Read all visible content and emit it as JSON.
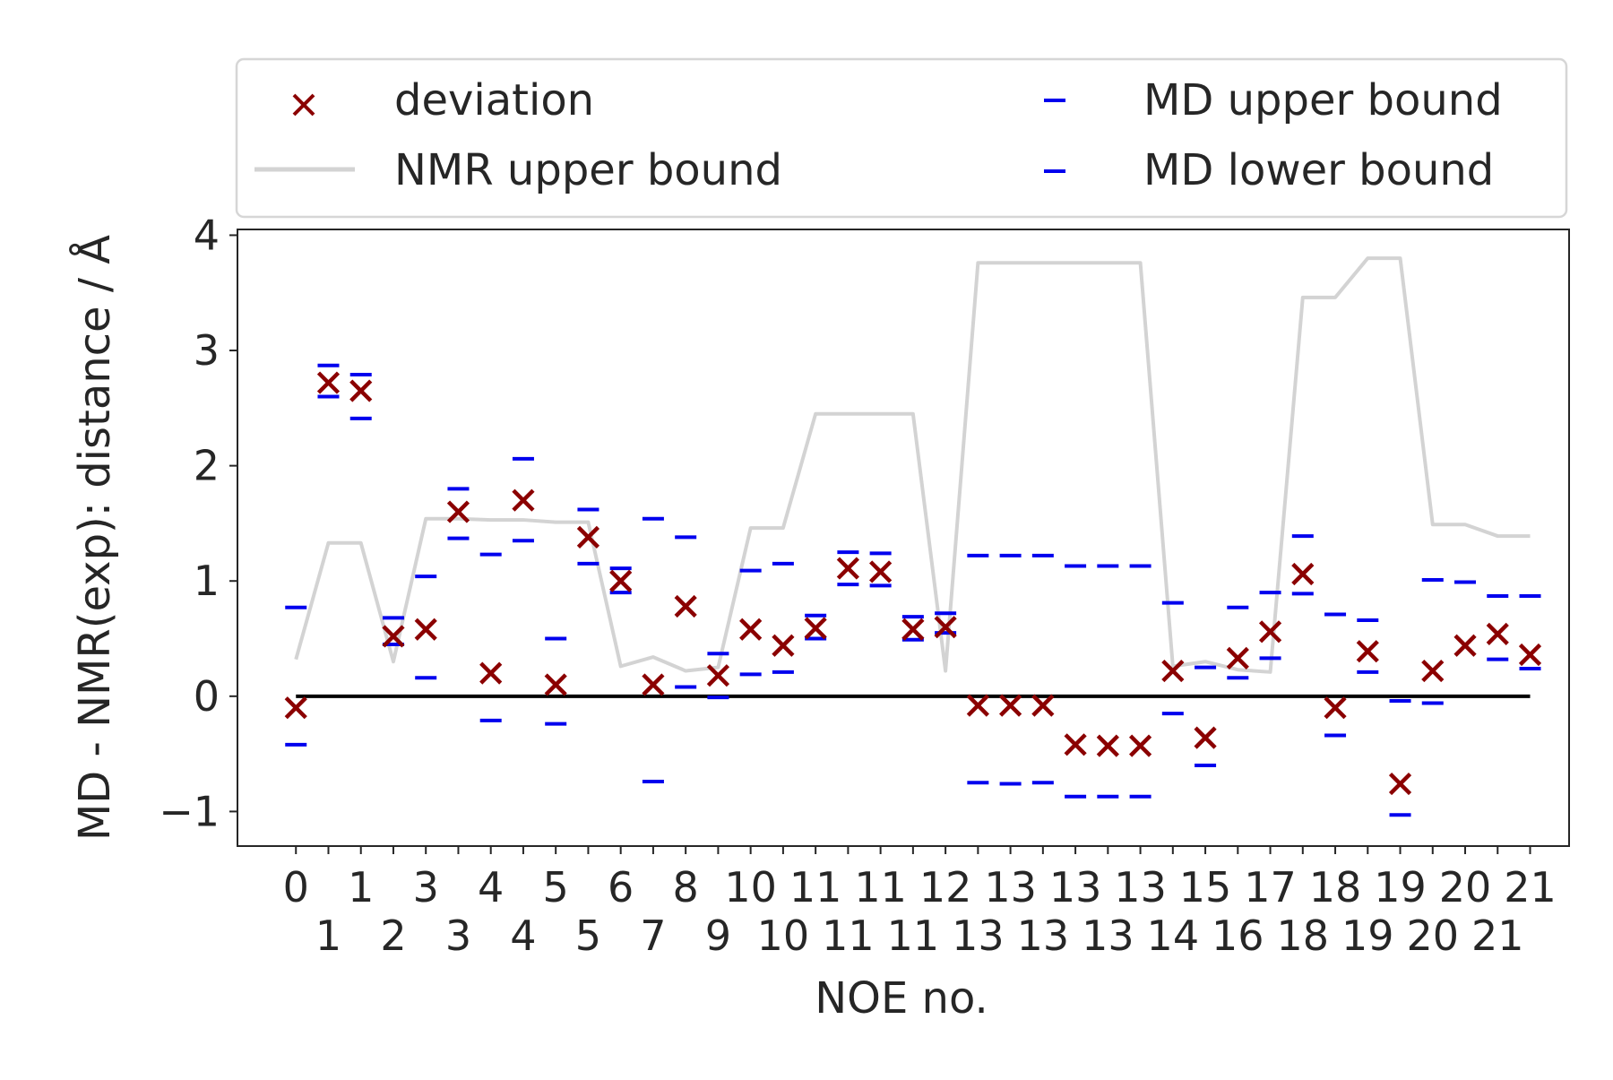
{
  "chart_data": {
    "type": "scatter",
    "title": "",
    "xlabel": "NOE no.",
    "ylabel": "MD - NMR(exp): distance / Å",
    "ylim": [
      -1.3,
      4.05
    ],
    "xlim": [
      -1.8,
      39.2
    ],
    "yticks": [
      -1,
      0,
      1,
      2,
      3,
      4
    ],
    "ytick_labels": [
      "−1",
      "0",
      "1",
      "2",
      "3",
      "4"
    ],
    "grid": false,
    "legend_placement": "top",
    "xtick_labels": [
      "0",
      "1",
      "1",
      "2",
      "3",
      "3",
      "4",
      "4",
      "5",
      "5",
      "6",
      "7",
      "8",
      "9",
      "10",
      "10",
      "11",
      "11",
      "11",
      "11",
      "12",
      "13",
      "13",
      "13",
      "13",
      "13",
      "13",
      "14",
      "15",
      "16",
      "17",
      "18",
      "18",
      "19",
      "19",
      "20",
      "20",
      "21",
      "21"
    ],
    "legend": {
      "deviation": "deviation",
      "nmr_upper": "NMR upper bound",
      "md_upper": "MD upper bound",
      "md_lower": "MD lower bound"
    },
    "colors": {
      "deviation": "#8b0000",
      "md_bounds": "#0000ee",
      "nmr_upper": "#d3d3d3",
      "zero_line": "#000000"
    },
    "series": [
      {
        "name": "deviation",
        "marker": "x",
        "values": [
          -0.1,
          2.72,
          2.65,
          0.52,
          0.58,
          1.6,
          0.2,
          1.7,
          0.1,
          1.38,
          1.0,
          0.1,
          0.78,
          0.18,
          0.58,
          0.44,
          0.59,
          1.11,
          1.08,
          0.58,
          0.6,
          -0.08,
          -0.08,
          -0.08,
          -0.42,
          -0.43,
          -0.43,
          0.22,
          -0.36,
          0.33,
          0.56,
          1.06,
          -0.1,
          0.39,
          -0.76,
          0.22,
          0.44,
          0.54,
          0.36
        ]
      },
      {
        "name": "NMR upper bound",
        "marker": "line",
        "values": [
          0.32,
          1.33,
          1.33,
          0.3,
          1.54,
          1.54,
          1.53,
          1.53,
          1.51,
          1.51,
          0.26,
          0.34,
          0.22,
          0.25,
          1.46,
          1.46,
          2.45,
          2.45,
          2.45,
          2.45,
          0.22,
          3.76,
          3.76,
          3.76,
          3.76,
          3.76,
          3.76,
          0.26,
          0.3,
          0.23,
          0.21,
          3.46,
          3.46,
          3.8,
          3.8,
          1.49,
          1.49,
          1.39,
          1.39
        ]
      },
      {
        "name": "MD upper bound",
        "marker": "_",
        "values": [
          0.77,
          2.87,
          2.79,
          0.68,
          1.04,
          1.8,
          1.23,
          2.06,
          0.5,
          1.62,
          1.11,
          1.54,
          1.38,
          0.37,
          1.09,
          1.15,
          0.7,
          1.25,
          1.24,
          0.69,
          0.72,
          1.22,
          1.22,
          1.22,
          1.13,
          1.13,
          1.13,
          0.81,
          0.25,
          0.77,
          0.9,
          1.39,
          0.71,
          0.66,
          -0.04,
          1.01,
          0.99,
          0.87,
          0.87
        ]
      },
      {
        "name": "MD lower bound",
        "marker": "_",
        "values": [
          -0.42,
          2.6,
          2.41,
          0.45,
          0.16,
          1.37,
          -0.21,
          1.35,
          -0.24,
          1.15,
          0.9,
          -0.74,
          0.08,
          -0.01,
          0.19,
          0.21,
          0.5,
          0.97,
          0.96,
          0.49,
          0.55,
          -0.75,
          -0.76,
          -0.75,
          -0.87,
          -0.87,
          -0.87,
          -0.15,
          -0.6,
          0.16,
          0.33,
          0.89,
          -0.34,
          0.21,
          -1.03,
          -0.06,
          null,
          0.32,
          0.24
        ]
      },
      {
        "name": "zero",
        "marker": "line",
        "values": [
          0,
          0
        ]
      }
    ]
  }
}
